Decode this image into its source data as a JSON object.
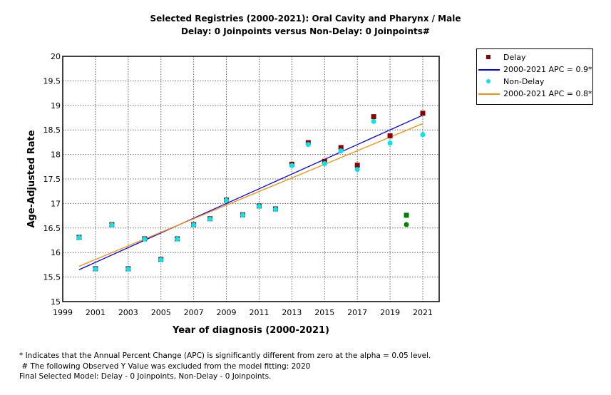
{
  "chart_data": {
    "type": "scatter",
    "title": "Selected Registries (2000-2021): Oral Cavity and Pharynx / Male",
    "subtitle": "Delay: 0 Joinpoints  versus  Non-Delay: 0 Joinpoints#",
    "xlabel": "Year of diagnosis (2000-2021)",
    "ylabel": "Age-Adjusted Rate",
    "xlim": [
      1999,
      2022
    ],
    "ylim": [
      15,
      20
    ],
    "x_ticks": [
      1999,
      2001,
      2003,
      2005,
      2007,
      2009,
      2011,
      2013,
      2015,
      2017,
      2019,
      2021
    ],
    "y_ticks": [
      15,
      15.5,
      16,
      16.5,
      17,
      17.5,
      18,
      18.5,
      19,
      19.5,
      20
    ],
    "y_tick_labels": [
      "15",
      "15.5",
      "16",
      "16.5",
      "17",
      "17.5",
      "18",
      "18.5",
      "19",
      "19.5",
      "20"
    ],
    "grid": true,
    "legend_position": "right-top",
    "excluded_year": 2020,
    "excluded_color": "#008000",
    "series": [
      {
        "name": "Delay",
        "marker": "square",
        "color": "#8b0000",
        "x": [
          2000,
          2001,
          2002,
          2003,
          2004,
          2005,
          2006,
          2007,
          2008,
          2009,
          2010,
          2011,
          2012,
          2013,
          2014,
          2015,
          2016,
          2017,
          2018,
          2019,
          2020,
          2021
        ],
        "y": [
          16.31,
          15.67,
          16.57,
          15.67,
          16.28,
          15.86,
          16.28,
          16.57,
          16.69,
          17.07,
          16.77,
          16.95,
          16.89,
          17.8,
          18.24,
          17.86,
          18.14,
          17.78,
          18.77,
          18.38,
          16.76,
          18.84
        ]
      },
      {
        "name": "Non-Delay",
        "marker": "circle",
        "color": "#00e5ee",
        "x": [
          2000,
          2001,
          2002,
          2003,
          2004,
          2005,
          2006,
          2007,
          2008,
          2009,
          2010,
          2011,
          2012,
          2013,
          2014,
          2015,
          2016,
          2017,
          2018,
          2019,
          2020,
          2021
        ],
        "y": [
          16.31,
          15.67,
          16.57,
          15.67,
          16.28,
          15.86,
          16.28,
          16.57,
          16.69,
          17.07,
          16.77,
          16.95,
          16.89,
          17.78,
          18.21,
          17.82,
          18.08,
          17.7,
          18.68,
          18.24,
          16.57,
          18.41
        ]
      }
    ],
    "fits": [
      {
        "name": "2000-2021 APC  = 0.9*",
        "series": "Delay",
        "color": "#0000ff",
        "x": [
          2000,
          2021
        ],
        "y": [
          15.65,
          18.8
        ]
      },
      {
        "name": "2000-2021 APC  = 0.8*",
        "series": "Non-Delay",
        "color": "#ff8c00",
        "x": [
          2000,
          2021
        ],
        "y": [
          15.72,
          18.63
        ]
      }
    ]
  },
  "legend": {
    "items": [
      {
        "label": "Delay",
        "kind": "square",
        "color": "#8b0000"
      },
      {
        "label": "2000-2021 APC  = 0.9*",
        "kind": "line",
        "color": "#0000ff"
      },
      {
        "label": "Non-Delay",
        "kind": "circle",
        "color": "#00e5ee"
      },
      {
        "label": "2000-2021 APC  = 0.8*",
        "kind": "line",
        "color": "#ff8c00"
      }
    ]
  },
  "footnotes": [
    "* Indicates that the Annual Percent Change (APC) is significantly different from zero at the alpha = 0.05 level.",
    " # The following Observed Y Value was excluded from the model fitting: 2020",
    "Final Selected Model: Delay - 0 Joinpoints, Non-Delay - 0 Joinpoints."
  ]
}
